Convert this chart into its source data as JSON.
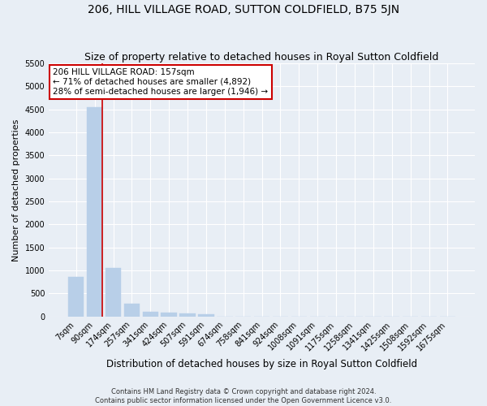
{
  "title": "206, HILL VILLAGE ROAD, SUTTON COLDFIELD, B75 5JN",
  "subtitle": "Size of property relative to detached houses in Royal Sutton Coldfield",
  "xlabel": "Distribution of detached houses by size in Royal Sutton Coldfield",
  "ylabel": "Number of detached properties",
  "categories": [
    "7sqm",
    "90sqm",
    "174sqm",
    "257sqm",
    "341sqm",
    "424sqm",
    "507sqm",
    "591sqm",
    "674sqm",
    "758sqm",
    "841sqm",
    "924sqm",
    "1008sqm",
    "1091sqm",
    "1175sqm",
    "1258sqm",
    "1341sqm",
    "1425sqm",
    "1508sqm",
    "1592sqm",
    "1675sqm"
  ],
  "values": [
    850,
    4550,
    1050,
    270,
    90,
    75,
    60,
    50,
    0,
    0,
    0,
    0,
    0,
    0,
    0,
    0,
    0,
    0,
    0,
    0,
    0
  ],
  "bar_color": "#b8cfe8",
  "bar_edge_color": "#b8cfe8",
  "vline_x_index": 1,
  "vline_color": "#cc0000",
  "annotation_text": "206 HILL VILLAGE ROAD: 157sqm\n← 71% of detached houses are smaller (4,892)\n28% of semi-detached houses are larger (1,946) →",
  "annotation_box_color": "white",
  "annotation_box_edge_color": "#cc0000",
  "ylim": [
    0,
    5500
  ],
  "yticks": [
    0,
    500,
    1000,
    1500,
    2000,
    2500,
    3000,
    3500,
    4000,
    4500,
    5000,
    5500
  ],
  "background_color": "#e8eef5",
  "plot_bg_color": "#e8eef5",
  "grid_color": "white",
  "footer_line1": "Contains HM Land Registry data © Crown copyright and database right 2024.",
  "footer_line2": "Contains public sector information licensed under the Open Government Licence v3.0.",
  "title_fontsize": 10,
  "subtitle_fontsize": 9,
  "xlabel_fontsize": 8.5,
  "ylabel_fontsize": 8,
  "tick_fontsize": 7,
  "annotation_fontsize": 7.5
}
